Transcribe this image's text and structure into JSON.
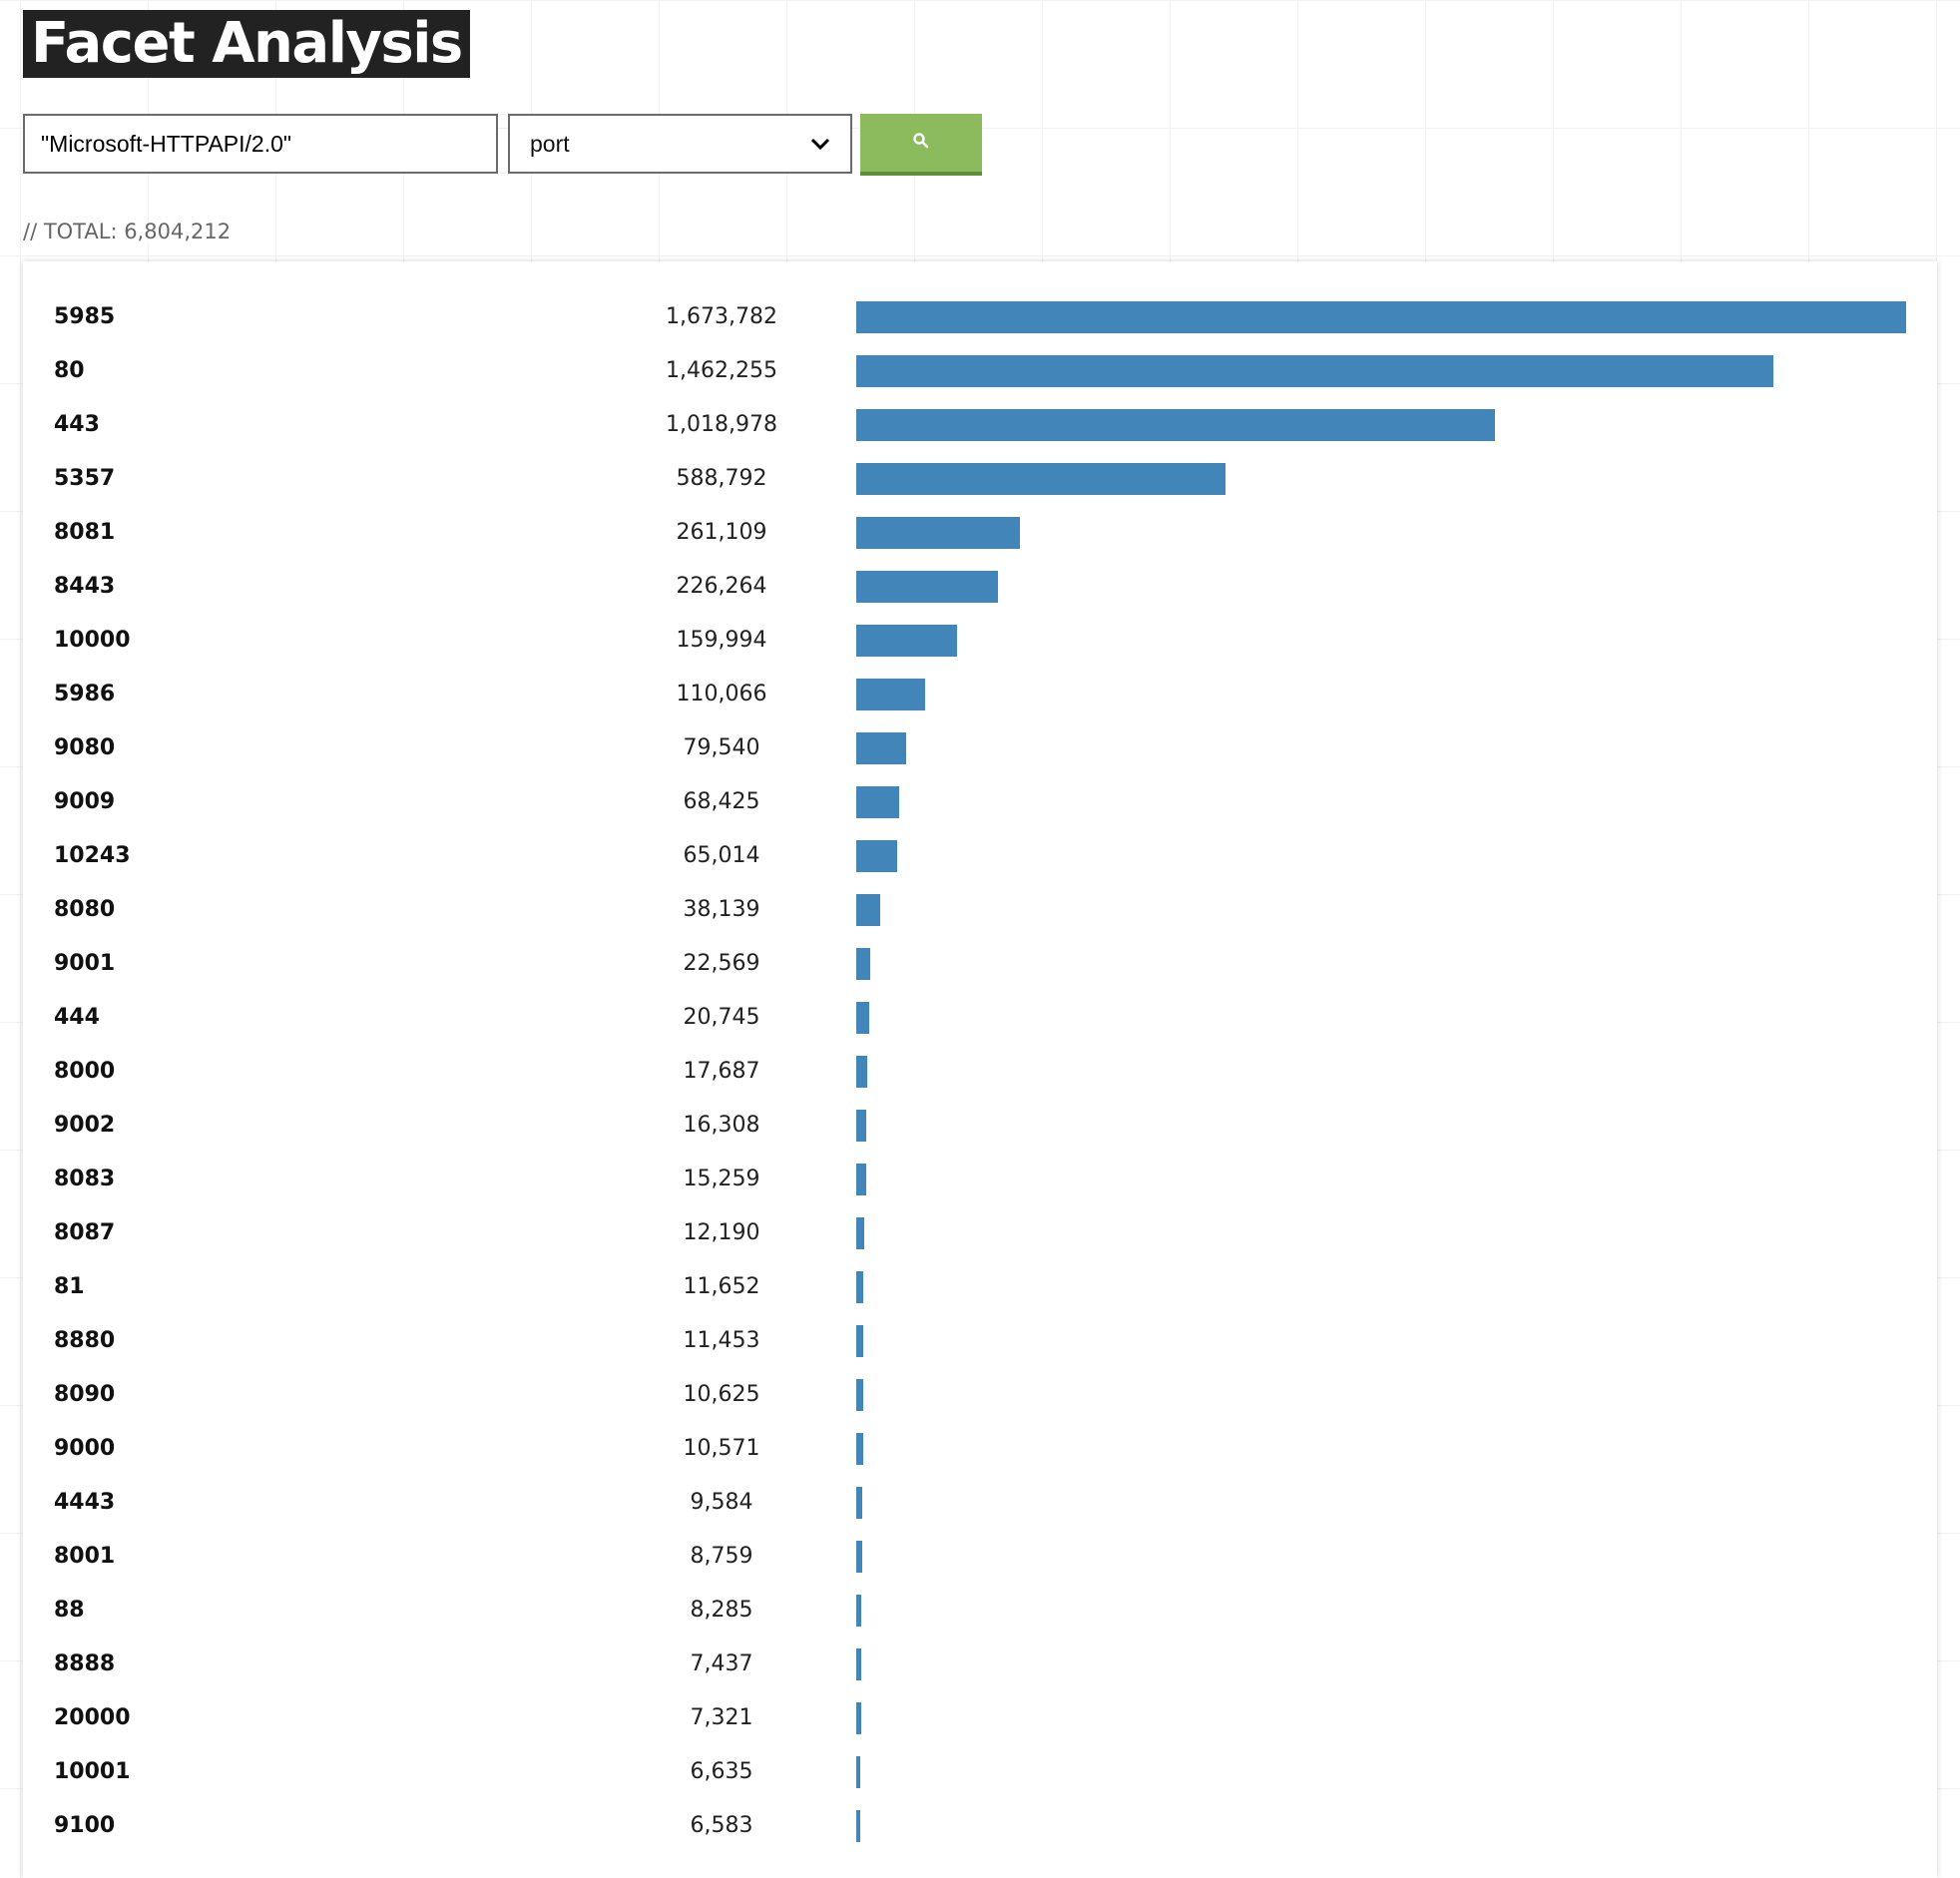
{
  "title": "Facet Analysis",
  "search": {
    "query": "\"Microsoft-HTTPAPI/2.0\""
  },
  "facet": {
    "selected": "port"
  },
  "search_button": {
    "icon": "search-icon"
  },
  "total_text": "// TOTAL: 6,804,212",
  "colors": {
    "bar": "#4185b9",
    "button": "#8bbb5c"
  },
  "facets": [
    {
      "label": "5985",
      "count_text": "1,673,782",
      "value": 1673782
    },
    {
      "label": "80",
      "count_text": "1,462,255",
      "value": 1462255
    },
    {
      "label": "443",
      "count_text": "1,018,978",
      "value": 1018978
    },
    {
      "label": "5357",
      "count_text": "588,792",
      "value": 588792
    },
    {
      "label": "8081",
      "count_text": "261,109",
      "value": 261109
    },
    {
      "label": "8443",
      "count_text": "226,264",
      "value": 226264
    },
    {
      "label": "10000",
      "count_text": "159,994",
      "value": 159994
    },
    {
      "label": "5986",
      "count_text": "110,066",
      "value": 110066
    },
    {
      "label": "9080",
      "count_text": "79,540",
      "value": 79540
    },
    {
      "label": "9009",
      "count_text": "68,425",
      "value": 68425
    },
    {
      "label": "10243",
      "count_text": "65,014",
      "value": 65014
    },
    {
      "label": "8080",
      "count_text": "38,139",
      "value": 38139
    },
    {
      "label": "9001",
      "count_text": "22,569",
      "value": 22569
    },
    {
      "label": "444",
      "count_text": "20,745",
      "value": 20745
    },
    {
      "label": "8000",
      "count_text": "17,687",
      "value": 17687
    },
    {
      "label": "9002",
      "count_text": "16,308",
      "value": 16308
    },
    {
      "label": "8083",
      "count_text": "15,259",
      "value": 15259
    },
    {
      "label": "8087",
      "count_text": "12,190",
      "value": 12190
    },
    {
      "label": "81",
      "count_text": "11,652",
      "value": 11652
    },
    {
      "label": "8880",
      "count_text": "11,453",
      "value": 11453
    },
    {
      "label": "8090",
      "count_text": "10,625",
      "value": 10625
    },
    {
      "label": "9000",
      "count_text": "10,571",
      "value": 10571
    },
    {
      "label": "4443",
      "count_text": "9,584",
      "value": 9584
    },
    {
      "label": "8001",
      "count_text": "8,759",
      "value": 8759
    },
    {
      "label": "88",
      "count_text": "8,285",
      "value": 8285
    },
    {
      "label": "8888",
      "count_text": "7,437",
      "value": 7437
    },
    {
      "label": "20000",
      "count_text": "7,321",
      "value": 7321
    },
    {
      "label": "10001",
      "count_text": "6,635",
      "value": 6635
    },
    {
      "label": "9100",
      "count_text": "6,583",
      "value": 6583
    }
  ]
}
